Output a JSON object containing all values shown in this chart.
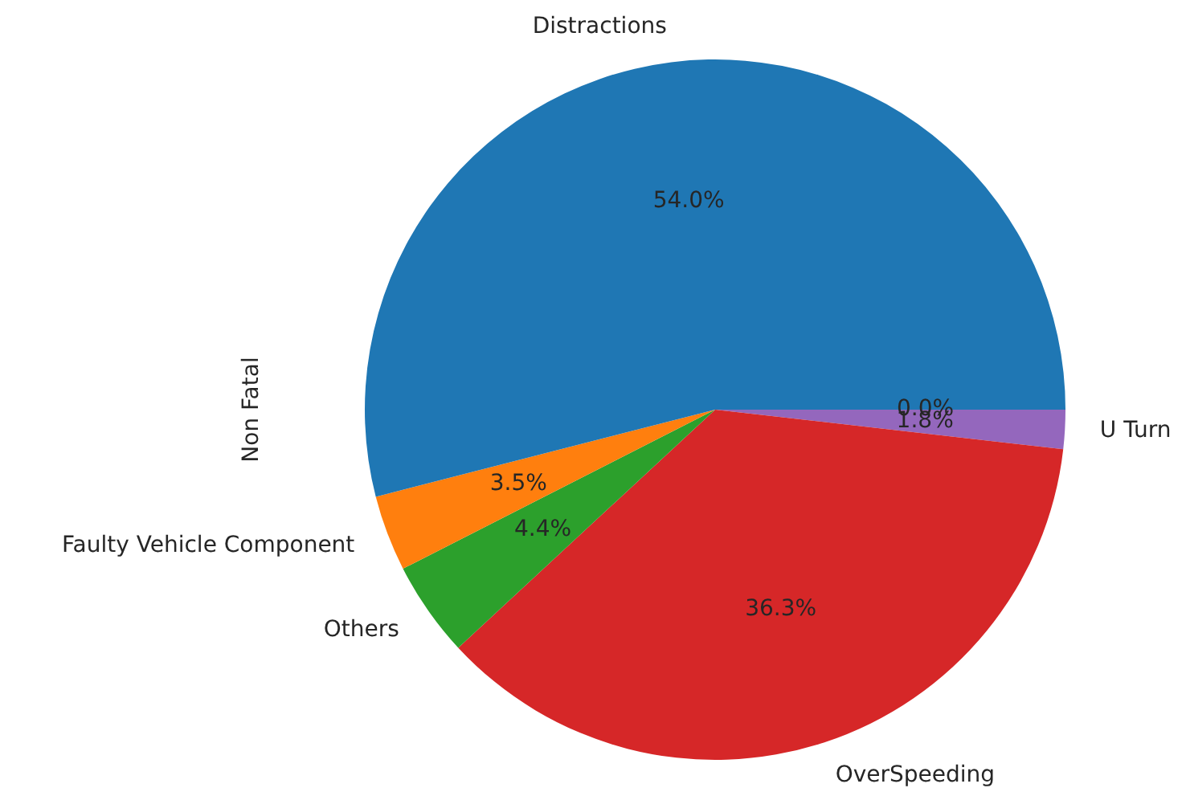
{
  "chart_data": {
    "type": "pie",
    "ylabel": "Non Fatal",
    "categories": [
      "Distractions",
      "Faulty Vehicle Component",
      "Others",
      "OverSpeeding",
      "U Turn",
      null
    ],
    "values": [
      54.0,
      3.5,
      4.4,
      36.3,
      1.8,
      0.0
    ],
    "colors": [
      "#1f77b4",
      "#ff7f0e",
      "#2ca02c",
      "#d62728",
      "#9467bd",
      "#8c564b"
    ],
    "value_labels": [
      "54.0%",
      "3.5%",
      "4.4%",
      "36.3%",
      "1.8%",
      "0.0%"
    ],
    "legend": false
  }
}
